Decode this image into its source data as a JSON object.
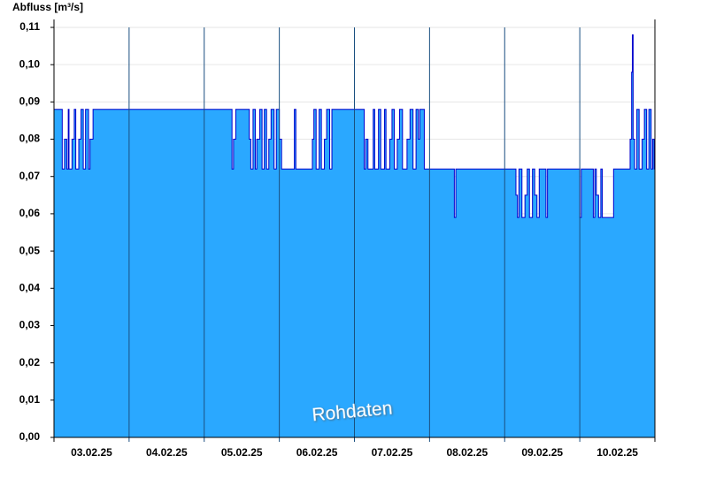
{
  "chart_data": {
    "type": "step-area",
    "y_axis_label": "Abfluss [m³/s]",
    "annotation": "Rohdaten",
    "xlim": [
      0,
      8
    ],
    "xticks": [
      {
        "value": 0.5,
        "label": "03.02.25"
      },
      {
        "value": 1.5,
        "label": "04.02.25"
      },
      {
        "value": 2.5,
        "label": "05.02.25"
      },
      {
        "value": 3.5,
        "label": "06.02.25"
      },
      {
        "value": 4.5,
        "label": "07.02.25"
      },
      {
        "value": 5.5,
        "label": "08.02.25"
      },
      {
        "value": 6.5,
        "label": "09.02.25"
      },
      {
        "value": 7.5,
        "label": "10.02.25"
      }
    ],
    "ylim": [
      0,
      0.11
    ],
    "yticks": [
      {
        "value": 0,
        "label": "0,00"
      },
      {
        "value": 0.01,
        "label": "0,01"
      },
      {
        "value": 0.02,
        "label": "0,02"
      },
      {
        "value": 0.03,
        "label": "0,03"
      },
      {
        "value": 0.04,
        "label": "0,04"
      },
      {
        "value": 0.05,
        "label": "0,05"
      },
      {
        "value": 0.06,
        "label": "0,06"
      },
      {
        "value": 0.07,
        "label": "0,07"
      },
      {
        "value": 0.08,
        "label": "0,08"
      },
      {
        "value": 0.09,
        "label": "0,09"
      },
      {
        "value": 0.1,
        "label": "0,10"
      },
      {
        "value": 0.11,
        "label": "0,11"
      }
    ],
    "grid": true,
    "fill_color": "#2aa8ff",
    "line_color": "#0000cc",
    "x": [
      0,
      0.11,
      0.14,
      0.17,
      0.19,
      0.2,
      0.24,
      0.27,
      0.29,
      0.33,
      0.36,
      0.39,
      0.42,
      0.46,
      0.48,
      0.52,
      2.37,
      2.39,
      2.42,
      2.6,
      2.62,
      2.65,
      2.68,
      2.7,
      2.74,
      2.77,
      2.8,
      2.83,
      2.86,
      2.89,
      2.93,
      2.96,
      3.0,
      3.03,
      3.2,
      3.22,
      3.44,
      3.46,
      3.49,
      3.53,
      3.56,
      3.6,
      3.63,
      3.67,
      3.7,
      4.13,
      4.15,
      4.18,
      4.25,
      4.27,
      4.32,
      4.35,
      4.4,
      4.42,
      4.47,
      4.5,
      4.53,
      4.57,
      4.6,
      4.64,
      4.7,
      4.74,
      4.78,
      4.82,
      4.85,
      4.87,
      4.93,
      5.33,
      5.35,
      6.15,
      6.17,
      6.19,
      6.23,
      6.27,
      6.3,
      6.33,
      6.37,
      6.4,
      6.43,
      6.46,
      6.55,
      6.57,
      7.0,
      7.02,
      7.18,
      7.2,
      7.22,
      7.25,
      7.28,
      7.3,
      7.45,
      7.67,
      7.69,
      7.7,
      7.71,
      7.73,
      7.76,
      7.79,
      7.83,
      7.86,
      7.89,
      7.92,
      7.95,
      7.97,
      7.99
    ],
    "values": [
      0.088,
      0.072,
      0.08,
      0.072,
      0.088,
      0.072,
      0.08,
      0.088,
      0.072,
      0.08,
      0.088,
      0.072,
      0.088,
      0.072,
      0.08,
      0.088,
      0.072,
      0.08,
      0.088,
      0.08,
      0.072,
      0.088,
      0.072,
      0.08,
      0.088,
      0.072,
      0.088,
      0.072,
      0.08,
      0.088,
      0.072,
      0.088,
      0.08,
      0.072,
      0.088,
      0.072,
      0.08,
      0.088,
      0.072,
      0.088,
      0.072,
      0.08,
      0.088,
      0.072,
      0.088,
      0.072,
      0.08,
      0.072,
      0.088,
      0.072,
      0.088,
      0.072,
      0.088,
      0.072,
      0.08,
      0.088,
      0.072,
      0.08,
      0.088,
      0.072,
      0.08,
      0.088,
      0.072,
      0.088,
      0.08,
      0.088,
      0.072,
      0.059,
      0.072,
      0.065,
      0.059,
      0.072,
      0.059,
      0.065,
      0.072,
      0.059,
      0.072,
      0.065,
      0.059,
      0.072,
      0.059,
      0.072,
      0.059,
      0.072,
      0.059,
      0.072,
      0.065,
      0.059,
      0.072,
      0.059,
      0.072,
      0.08,
      0.098,
      0.108,
      0.08,
      0.072,
      0.088,
      0.072,
      0.08,
      0.088,
      0.072,
      0.088,
      0.072,
      0.08,
      0.072
    ]
  }
}
